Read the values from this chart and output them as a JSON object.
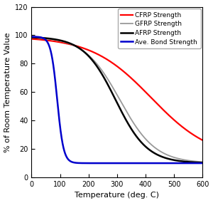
{
  "title": "",
  "xlabel": "Temperature (deg. C)",
  "ylabel": "% of Room Temperature Value",
  "xlim": [
    0,
    600
  ],
  "ylim": [
    0,
    120
  ],
  "yticks": [
    0,
    20,
    40,
    60,
    80,
    100,
    120
  ],
  "xticks": [
    0,
    100,
    200,
    300,
    400,
    500,
    600
  ],
  "curves": {
    "CFRP Strength": {
      "color": "#ff0000",
      "linewidth": 1.6,
      "params": {
        "T0": 420,
        "k": 0.0095,
        "upper": 99,
        "lower": 13
      }
    },
    "GFRP Strength": {
      "color": "#999999",
      "linewidth": 1.3,
      "params": {
        "T0": 310,
        "k": 0.016,
        "upper": 99,
        "lower": 10
      }
    },
    "AFRP Strength": {
      "color": "#000000",
      "linewidth": 1.8,
      "params": {
        "T0": 295,
        "k": 0.018,
        "upper": 99,
        "lower": 10
      }
    },
    "Ave. Bond Strength": {
      "color": "#0000cc",
      "linewidth": 1.8,
      "params": {
        "T0": 90,
        "k": 0.09,
        "upper": 99,
        "lower": 10
      }
    }
  },
  "legend_fontsize": 6.5,
  "tick_fontsize": 7,
  "label_fontsize": 8,
  "background_color": "#ffffff"
}
